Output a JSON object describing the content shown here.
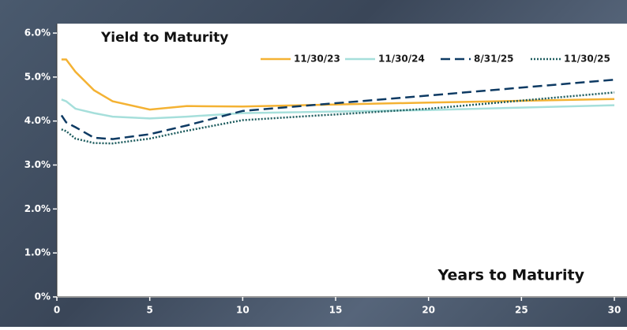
{
  "chart_data": {
    "type": "line",
    "title": "Yield to Maturity",
    "x_label": "Years to Maturity",
    "x": [
      0.25,
      0.5,
      1,
      2,
      3,
      5,
      7,
      10,
      20,
      30
    ],
    "series": [
      {
        "name": "11/30/23",
        "color": "#f4b233",
        "dash": "solid",
        "values": [
          5.4,
          5.4,
          5.12,
          4.7,
          4.45,
          4.26,
          4.34,
          4.33,
          4.42,
          4.5
        ]
      },
      {
        "name": "11/30/24",
        "color": "#a6dfdb",
        "dash": "solid",
        "values": [
          4.49,
          4.45,
          4.28,
          4.18,
          4.1,
          4.06,
          4.1,
          4.18,
          4.25,
          4.36
        ]
      },
      {
        "name": "8/31/25",
        "color": "#0d3a63",
        "dash": "dashed",
        "values": [
          4.13,
          3.97,
          3.86,
          3.62,
          3.59,
          3.7,
          3.9,
          4.23,
          4.58,
          4.94
        ]
      },
      {
        "name": "11/30/25",
        "color": "#1d5c5e",
        "dash": "dotted",
        "values": [
          3.81,
          3.77,
          3.6,
          3.5,
          3.49,
          3.6,
          3.78,
          4.02,
          4.28,
          4.65
        ]
      }
    ],
    "xlim": [
      0,
      30
    ],
    "xticks": [
      0,
      5,
      10,
      15,
      20,
      25,
      30
    ],
    "ylim": [
      0,
      6
    ],
    "yticks": [
      {
        "value": 0,
        "label": "0%"
      },
      {
        "value": 1,
        "label": "1.0%"
      },
      {
        "value": 2,
        "label": "2.0%"
      },
      {
        "value": 3,
        "label": "3.0%"
      },
      {
        "value": 4,
        "label": "4.0%"
      },
      {
        "value": 5,
        "label": "5.0%"
      },
      {
        "value": 6,
        "label": "6.0%"
      }
    ],
    "legend": "top-right",
    "grid": false
  }
}
